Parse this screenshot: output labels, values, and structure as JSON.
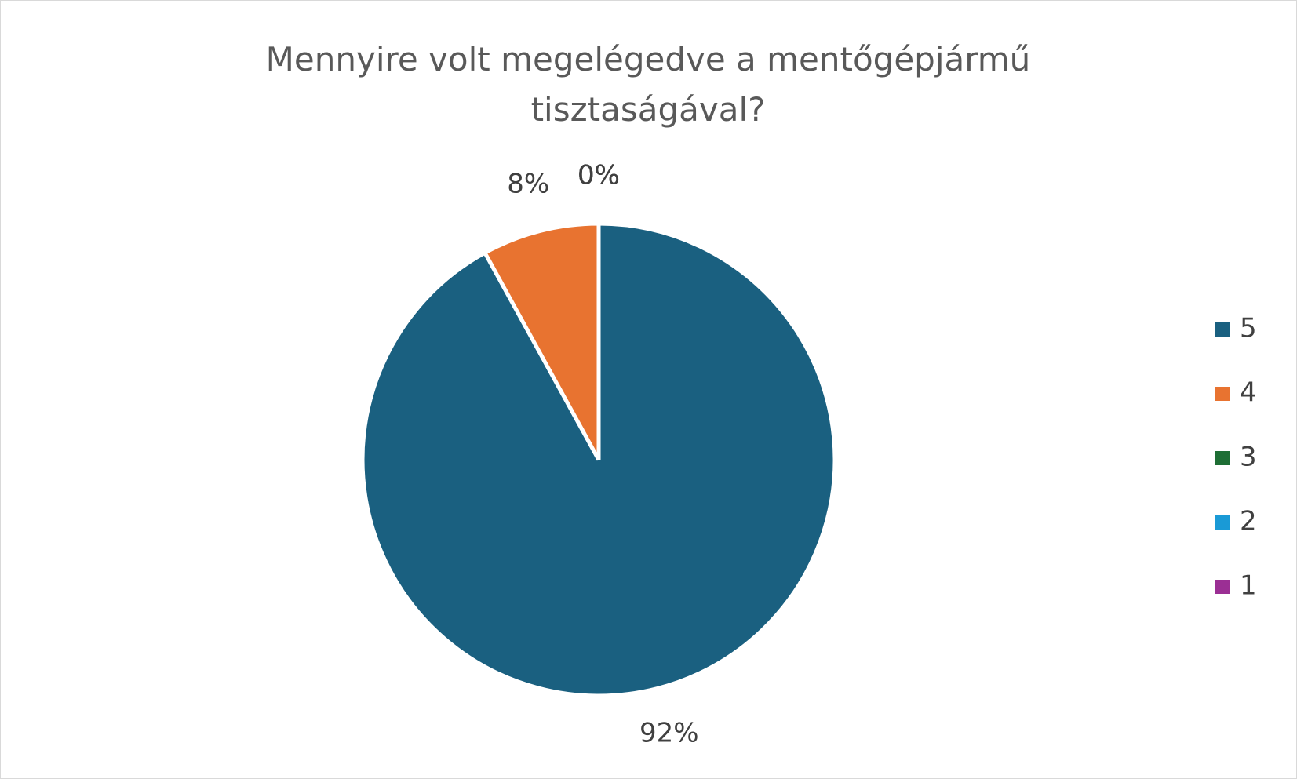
{
  "chart_data": {
    "type": "pie",
    "title": "Mennyire volt megelégedve a mentőgépjármű tisztaságával?",
    "categories": [
      "5",
      "4",
      "3",
      "2",
      "1"
    ],
    "values": [
      92,
      8,
      0,
      0,
      0
    ],
    "value_labels": [
      "92%",
      "8%",
      "0%",
      "0%",
      "0%"
    ],
    "colors": [
      "#1a6080",
      "#e87330",
      "#1e6e35",
      "#1a9ad6",
      "#9b2f94"
    ],
    "legend": "right"
  }
}
